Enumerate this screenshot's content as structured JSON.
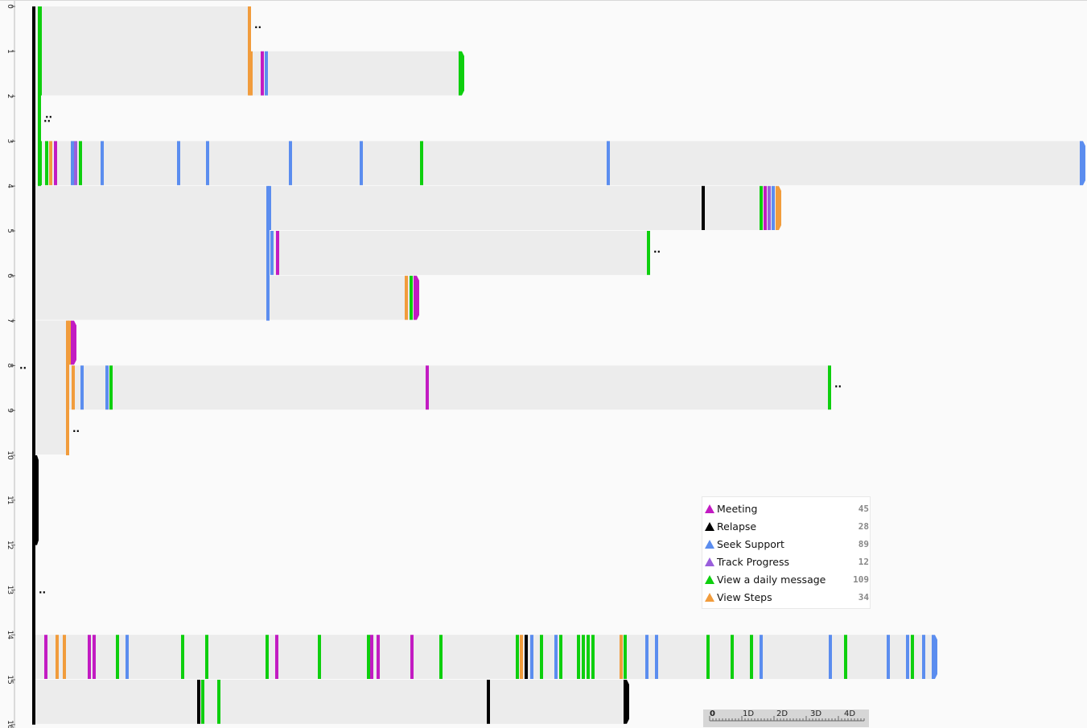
{
  "row_axis": {
    "labels": [
      "0",
      "1",
      "2",
      "3",
      "4",
      "5",
      "6",
      "7",
      "8",
      "9",
      "10",
      "11",
      "12",
      "13",
      "14",
      "15",
      "16"
    ]
  },
  "event_types": [
    {
      "key": "meeting",
      "label": "Meeting",
      "color": "#c21bc2",
      "count": "45",
      "icon": "triangle-icon"
    },
    {
      "key": "relapse",
      "label": "Relapse",
      "color": "#000000",
      "count": "28",
      "icon": "triangle-icon"
    },
    {
      "key": "seek",
      "label": "Seek Support",
      "color": "#5b8def",
      "count": "89",
      "icon": "triangle-icon"
    },
    {
      "key": "track",
      "label": "Track Progress",
      "color": "#9a5fdc",
      "count": "12",
      "icon": "triangle-icon"
    },
    {
      "key": "daily",
      "label": "View a daily message",
      "color": "#0ecf0e",
      "count": "109",
      "icon": "triangle-icon"
    },
    {
      "key": "steps",
      "label": "View Steps",
      "color": "#f19c3c",
      "count": "34",
      "icon": "triangle-icon"
    }
  ],
  "legend": [
    {
      "label": "Meeting",
      "count": "45",
      "color": "#c21bc2"
    },
    {
      "label": "Relapse",
      "count": "28",
      "color": "#000000"
    },
    {
      "label": "Seek Support",
      "count": "89",
      "color": "#5b8def"
    },
    {
      "label": "Track Progress",
      "count": "12",
      "color": "#9a5fdc"
    },
    {
      "label": "View a daily message",
      "count": "109",
      "color": "#0ecf0e"
    },
    {
      "label": "View Steps",
      "count": "34",
      "color": "#f19c3c"
    }
  ],
  "scale": {
    "labels": [
      "0",
      "1D",
      "2D",
      "3D",
      "4D"
    ]
  },
  "more_marker": "..",
  "sequences": [
    {
      "row": 0,
      "span": 2,
      "start": 48,
      "end": 310,
      "events": [
        [
          "daily",
          48
        ]
      ],
      "tail": "steps",
      "more": true
    },
    {
      "row": 1,
      "span": 1,
      "start": 312,
      "end": 572,
      "events": [
        [
          "steps",
          310
        ],
        [
          "meeting",
          324
        ],
        [
          "seek",
          329
        ]
      ],
      "tail": "daily",
      "rounded": true
    },
    {
      "row": 2,
      "span": 0.5,
      "start": 48,
      "end": 50,
      "events": [],
      "more": true
    },
    {
      "row": 3,
      "span": 1,
      "start": 48,
      "end": 1344,
      "events": [
        [
          "daily",
          48
        ],
        [
          "daily",
          56
        ],
        [
          "steps",
          61
        ],
        [
          "meeting",
          67
        ],
        [
          "seek",
          88
        ],
        [
          "track",
          92
        ],
        [
          "daily",
          98
        ],
        [
          "seek",
          125
        ],
        [
          "seek",
          220
        ],
        [
          "seek",
          256
        ],
        [
          "seek",
          359
        ],
        [
          "seek",
          447
        ],
        [
          "daily",
          522
        ],
        [
          "seek",
          754
        ]
      ],
      "tail": "seek",
      "rounded": true
    },
    {
      "row": 4,
      "span": 1,
      "start": 333,
      "end": 966,
      "events": [
        [
          "seek",
          333
        ],
        [
          "relapse",
          872
        ],
        [
          "daily",
          944
        ],
        [
          "meeting",
          949
        ],
        [
          "track",
          954
        ],
        [
          "seek",
          959
        ]
      ],
      "tail": "steps",
      "rounded": true
    },
    {
      "row": 5,
      "span": 1,
      "start": 333,
      "end": 806,
      "events": [
        [
          "seek",
          336
        ],
        [
          "meeting",
          343
        ]
      ],
      "tail": "daily",
      "more": true
    },
    {
      "row": 6,
      "span": 1,
      "start": 333,
      "end": 516,
      "events": [
        [
          "steps",
          503
        ],
        [
          "daily",
          509
        ]
      ],
      "tail": "meeting",
      "rounded": true
    },
    {
      "row": 7,
      "span": 1,
      "start": 44,
      "end": 90,
      "events": [
        [
          "steps",
          84
        ]
      ],
      "tail": "meeting",
      "rounded": true
    },
    {
      "row": 8,
      "span": 1,
      "start": 86,
      "end": 1031,
      "events": [
        [
          "steps",
          89
        ],
        [
          "seek",
          100
        ],
        [
          "seek",
          131
        ],
        [
          "daily",
          136
        ],
        [
          "meeting",
          529
        ]
      ],
      "tail": "daily",
      "more": true
    },
    {
      "row": 9,
      "span": 1,
      "start": 44,
      "end": 84,
      "events": [],
      "tail": "steps",
      "more": true
    },
    {
      "row": 14,
      "span": 1,
      "start": 44,
      "end": 1160,
      "events": [
        [
          "meeting",
          55
        ],
        [
          "steps",
          69
        ],
        [
          "steps",
          78
        ],
        [
          "meeting",
          109
        ],
        [
          "meeting",
          115
        ],
        [
          "daily",
          144
        ],
        [
          "seek",
          156
        ],
        [
          "daily",
          225
        ],
        [
          "daily",
          255
        ],
        [
          "daily",
          330
        ],
        [
          "meeting",
          342
        ],
        [
          "daily",
          395
        ],
        [
          "daily",
          456
        ],
        [
          "meeting",
          460
        ],
        [
          "meeting",
          468
        ],
        [
          "meeting",
          510
        ],
        [
          "daily",
          546
        ],
        [
          "daily",
          641
        ],
        [
          "steps",
          646
        ],
        [
          "relapse",
          652
        ],
        [
          "seek",
          659
        ],
        [
          "daily",
          671
        ],
        [
          "seek",
          689
        ],
        [
          "daily",
          695
        ],
        [
          "daily",
          717
        ],
        [
          "daily",
          723
        ],
        [
          "daily",
          729
        ],
        [
          "daily",
          735
        ],
        [
          "steps",
          770
        ],
        [
          "daily",
          775
        ],
        [
          "seek",
          802
        ],
        [
          "seek",
          814
        ],
        [
          "daily",
          878
        ],
        [
          "daily",
          908
        ],
        [
          "daily",
          932
        ],
        [
          "seek",
          944
        ],
        [
          "seek",
          1030
        ],
        [
          "daily",
          1049
        ],
        [
          "seek",
          1102
        ],
        [
          "seek",
          1126
        ],
        [
          "daily",
          1132
        ],
        [
          "seek",
          1146
        ]
      ],
      "tail": "seek",
      "rounded": true
    },
    {
      "row": 15,
      "span": 1,
      "start": 44,
      "end": 777,
      "events": [
        [
          "relapse",
          245
        ],
        [
          "daily",
          250
        ],
        [
          "daily",
          270
        ],
        [
          "relapse",
          605
        ]
      ],
      "tail": "relapse",
      "rounded": true
    }
  ],
  "parent_bars": [
    {
      "row": 0,
      "span": 4,
      "start": 44,
      "end": 48
    },
    {
      "row": 4,
      "span": 3,
      "start": 44,
      "end": 333
    },
    {
      "row": 7,
      "span": 3,
      "start": 44,
      "end": 86
    },
    {
      "row": 15,
      "span": 1,
      "start": 44,
      "end": 46
    }
  ],
  "branch_lines": [
    {
      "from_row": 0,
      "to_row": 16,
      "kind": "relapse"
    },
    {
      "from_row": 0,
      "to_row": 4,
      "kind": "daily"
    },
    {
      "from_row": 4,
      "to_row": 7,
      "kind": "seek"
    },
    {
      "from_row": 7,
      "to_row": 10,
      "kind": "steps"
    }
  ],
  "root_blocks": [
    {
      "from_row": 10,
      "to_row": 12,
      "kind": "relapse"
    }
  ],
  "side_markers": [
    {
      "row": 8,
      "x": 24
    },
    {
      "row": 13,
      "x": 48
    },
    {
      "row": 2.5,
      "x": 54
    }
  ]
}
